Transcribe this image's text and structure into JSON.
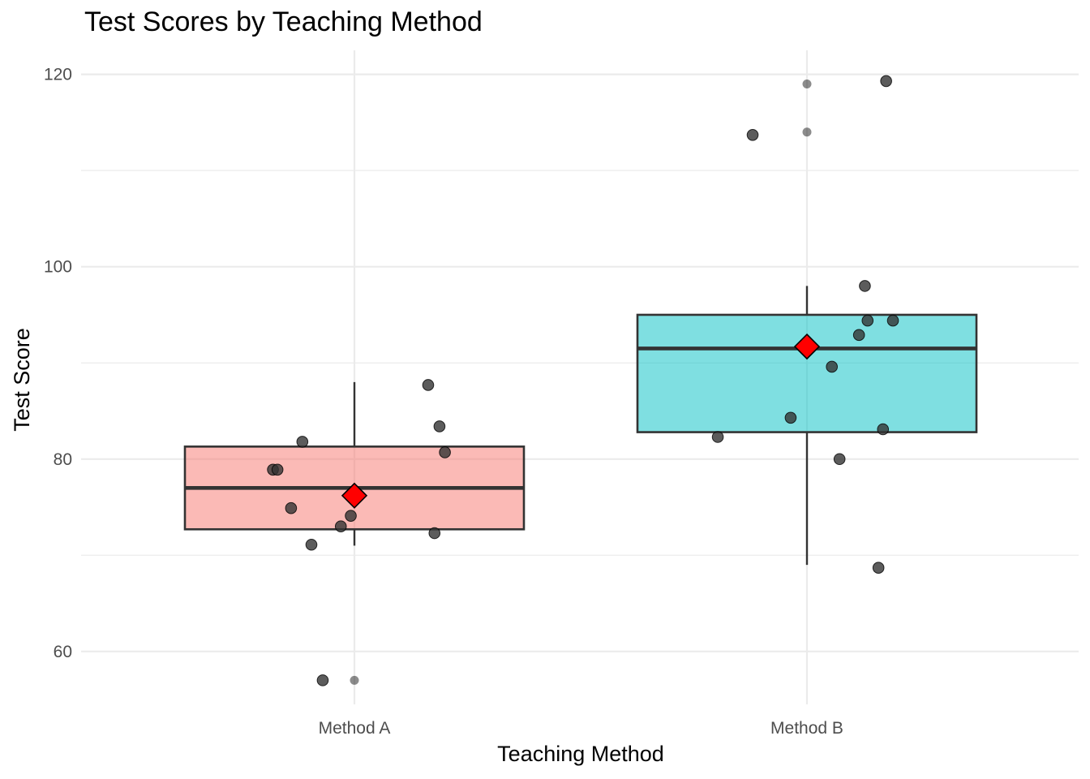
{
  "chart_data": {
    "type": "boxplot",
    "title": "Test Scores by Teaching Method",
    "xlabel": "Teaching Method",
    "ylabel": "Test Score",
    "ylim": [
      54.5,
      122.5
    ],
    "yticks": [
      60,
      80,
      100,
      120
    ],
    "grid": true,
    "legend": "none",
    "categories": [
      "Method A",
      "Method B"
    ],
    "boxes": [
      {
        "category": "Method A",
        "color": "#F8766D",
        "whisker_low": 71,
        "q1": 72.7,
        "median": 77,
        "q3": 81.3,
        "whisker_high": 88,
        "mean": 76.2,
        "outliers": [
          57
        ],
        "points": [
          {
            "offset": -0.18,
            "y": 78.9
          },
          {
            "offset": -0.17,
            "y": 78.9
          },
          {
            "offset": -0.115,
            "y": 81.8
          },
          {
            "offset": -0.14,
            "y": 74.9
          },
          {
            "offset": -0.095,
            "y": 71.1
          },
          {
            "offset": -0.03,
            "y": 73.0
          },
          {
            "offset": -0.008,
            "y": 74.1
          },
          {
            "offset": 0.163,
            "y": 87.7
          },
          {
            "offset": 0.188,
            "y": 83.4
          },
          {
            "offset": 0.2,
            "y": 80.7
          },
          {
            "offset": 0.177,
            "y": 72.3
          },
          {
            "offset": -0.07,
            "y": 57.0
          }
        ]
      },
      {
        "category": "Method B",
        "color": "#00BFC4",
        "whisker_low": 69,
        "q1": 82.8,
        "median": 91.5,
        "q3": 95.0,
        "whisker_high": 98,
        "mean": 91.7,
        "outliers": [
          119,
          114
        ],
        "points": [
          {
            "offset": -0.12,
            "y": 113.7
          },
          {
            "offset": 0.175,
            "y": 119.3
          },
          {
            "offset": 0.128,
            "y": 98.0
          },
          {
            "offset": 0.134,
            "y": 94.4
          },
          {
            "offset": 0.19,
            "y": 94.4
          },
          {
            "offset": 0.115,
            "y": 92.9
          },
          {
            "offset": 0.055,
            "y": 89.6
          },
          {
            "offset": -0.036,
            "y": 84.3
          },
          {
            "offset": -0.197,
            "y": 82.3
          },
          {
            "offset": 0.168,
            "y": 83.1
          },
          {
            "offset": 0.072,
            "y": 80.0
          },
          {
            "offset": 0.158,
            "y": 68.7
          }
        ]
      }
    ],
    "colors": {
      "mean_marker": "#FF0000",
      "box_outline": "#333333",
      "point": "#333333",
      "grid": "#ebebeb"
    }
  }
}
